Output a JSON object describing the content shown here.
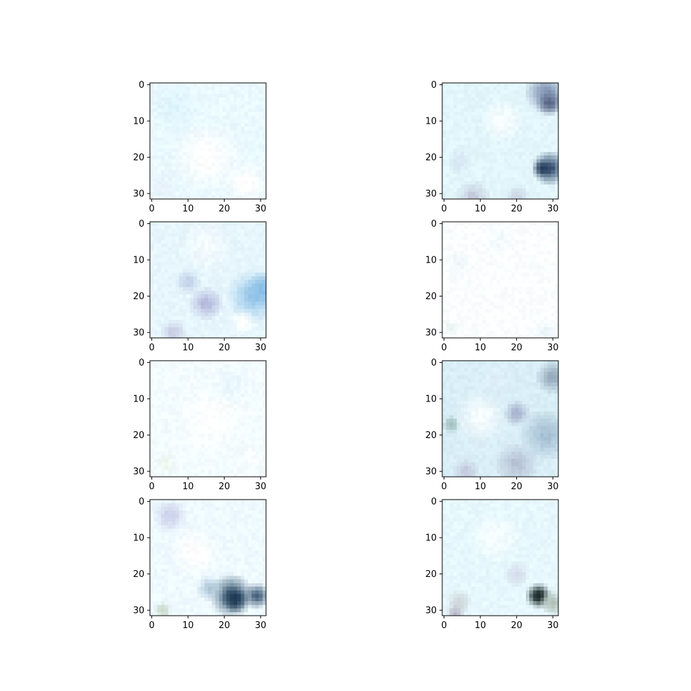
{
  "chart_data": {
    "type": "heatmap",
    "layout": "4 rows x 2 columns grid of image panels",
    "image_size": [
      32,
      32
    ],
    "x_ticks": [
      0,
      10,
      20,
      30
    ],
    "y_ticks": [
      0,
      10,
      20,
      30
    ],
    "xlim": [
      -0.5,
      31.5
    ],
    "ylim": [
      31.5,
      -0.5
    ],
    "grid": false,
    "panels": [
      {
        "base": "#eaf9ff",
        "blobs": [
          {
            "x": 15,
            "y": 20,
            "r": 8,
            "c": "#ffffff"
          },
          {
            "x": 26,
            "y": 27,
            "r": 5,
            "c": "#ffffff"
          },
          {
            "x": 6,
            "y": 6,
            "r": 6,
            "c": "#dff5fd"
          },
          {
            "x": 3,
            "y": 28,
            "r": 3,
            "c": "#e6f0f8"
          }
        ]
      },
      {
        "base": "#e2f6fb",
        "blobs": [
          {
            "x": 28,
            "y": 2,
            "r": 5,
            "c": "#8d9fbd"
          },
          {
            "x": 29,
            "y": 5,
            "r": 3,
            "c": "#5c6b8a"
          },
          {
            "x": 29,
            "y": 23,
            "r": 4,
            "c": "#3e5677"
          },
          {
            "x": 27,
            "y": 23,
            "r": 2,
            "c": "#263c5c"
          },
          {
            "x": 16,
            "y": 10,
            "r": 5,
            "c": "#f8fdff"
          },
          {
            "x": 8,
            "y": 31,
            "r": 4,
            "c": "#c7cede"
          },
          {
            "x": 20,
            "y": 31,
            "r": 3,
            "c": "#cbd6e4"
          },
          {
            "x": 4,
            "y": 21,
            "r": 3,
            "c": "#d9e8f4"
          }
        ]
      },
      {
        "base": "#e6f6fc",
        "blobs": [
          {
            "x": 28,
            "y": 20,
            "r": 6,
            "c": "#9cc9ea"
          },
          {
            "x": 31,
            "y": 18,
            "r": 4,
            "c": "#8cc0e8"
          },
          {
            "x": 15,
            "y": 22,
            "r": 4,
            "c": "#b8bedf"
          },
          {
            "x": 10,
            "y": 16,
            "r": 3,
            "c": "#c5d3ea"
          },
          {
            "x": 25,
            "y": 27,
            "r": 3,
            "c": "#ffffff"
          },
          {
            "x": 6,
            "y": 30,
            "r": 3,
            "c": "#c9cfe6"
          },
          {
            "x": 15,
            "y": 6,
            "r": 6,
            "c": "#f4fbff"
          }
        ]
      },
      {
        "base": "#fbfeff",
        "blobs": [
          {
            "x": 2,
            "y": 29,
            "r": 2,
            "c": "#e8f2ee"
          },
          {
            "x": 4,
            "y": 11,
            "r": 3,
            "c": "#eef8fb"
          },
          {
            "x": 28,
            "y": 30,
            "r": 3,
            "c": "#eaf6fb"
          },
          {
            "x": 15,
            "y": 4,
            "r": 4,
            "c": "#f4fbfe"
          }
        ]
      },
      {
        "base": "#f3fcff",
        "blobs": [
          {
            "x": 16,
            "y": 16,
            "r": 8,
            "c": "#ffffff"
          },
          {
            "x": 22,
            "y": 6,
            "r": 5,
            "c": "#eaf8fd"
          },
          {
            "x": 4,
            "y": 28,
            "r": 3,
            "c": "#eef7f0"
          },
          {
            "x": 28,
            "y": 26,
            "r": 4,
            "c": "#f8fdff"
          }
        ]
      },
      {
        "base": "#d9eef6",
        "blobs": [
          {
            "x": 10,
            "y": 15,
            "r": 6,
            "c": "#f6fcff"
          },
          {
            "x": 28,
            "y": 20,
            "r": 6,
            "c": "#a9c3d6"
          },
          {
            "x": 30,
            "y": 4,
            "r": 4,
            "c": "#9aaebf"
          },
          {
            "x": 20,
            "y": 28,
            "r": 5,
            "c": "#b8c4d6"
          },
          {
            "x": 20,
            "y": 14,
            "r": 3,
            "c": "#aab5d0"
          },
          {
            "x": 2,
            "y": 17,
            "r": 2,
            "c": "#9cbcba"
          },
          {
            "x": 6,
            "y": 30,
            "r": 3,
            "c": "#c3c9de"
          },
          {
            "x": 14,
            "y": 4,
            "r": 4,
            "c": "#e0f0fa"
          }
        ]
      },
      {
        "base": "#eefaff",
        "blobs": [
          {
            "x": 22,
            "y": 26,
            "r": 5,
            "c": "#43627a"
          },
          {
            "x": 23,
            "y": 27,
            "r": 3,
            "c": "#1f3a55"
          },
          {
            "x": 29,
            "y": 26,
            "r": 3,
            "c": "#4a6681"
          },
          {
            "x": 16,
            "y": 24,
            "r": 3,
            "c": "#b0c8da"
          },
          {
            "x": 5,
            "y": 4,
            "r": 4,
            "c": "#cdd3ea"
          },
          {
            "x": 3,
            "y": 30,
            "r": 2,
            "c": "#c8d8c8"
          },
          {
            "x": 12,
            "y": 14,
            "r": 6,
            "c": "#ffffff"
          }
        ]
      },
      {
        "base": "#e6f8fd",
        "blobs": [
          {
            "x": 26,
            "y": 26,
            "r": 3,
            "c": "#3a4a48"
          },
          {
            "x": 26,
            "y": 26,
            "r": 2,
            "c": "#1e2c2e"
          },
          {
            "x": 30,
            "y": 28,
            "r": 3,
            "c": "#b0c2b8"
          },
          {
            "x": 4,
            "y": 28,
            "r": 3,
            "c": "#cdd6da"
          },
          {
            "x": 3,
            "y": 31,
            "r": 2,
            "c": "#b8b4c8"
          },
          {
            "x": 20,
            "y": 20,
            "r": 3,
            "c": "#d5dcea"
          },
          {
            "x": 14,
            "y": 10,
            "r": 6,
            "c": "#f6fdff"
          }
        ]
      }
    ]
  }
}
